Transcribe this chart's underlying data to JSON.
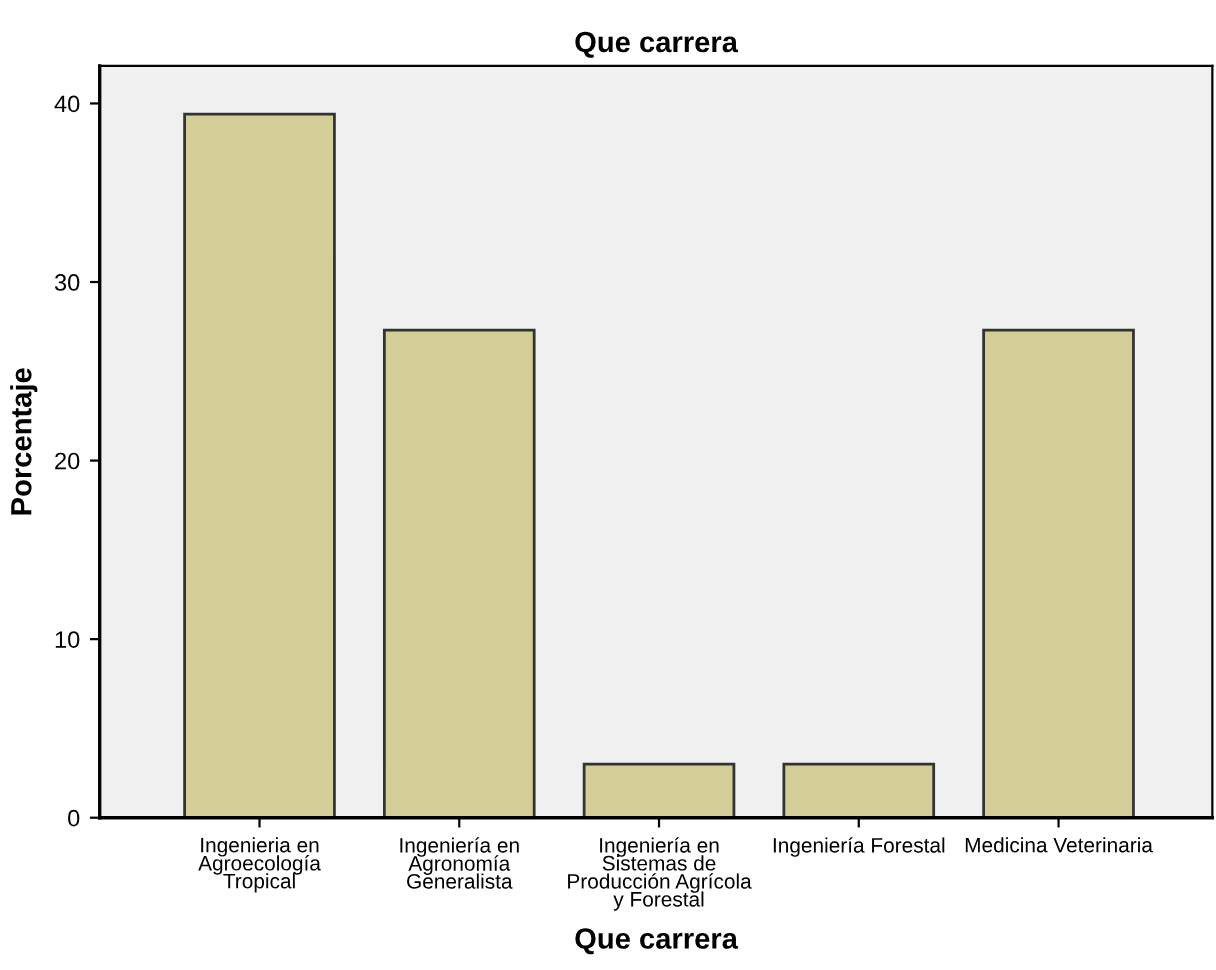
{
  "chart_data": {
    "type": "bar",
    "title": "Que carrera",
    "xlabel": "Que carrera",
    "ylabel": "Porcentaje",
    "categories": [
      "Ingenieria en\nAgroecología\nTropical",
      "Ingeniería en\nAgronomía\nGeneralista",
      "Ingeniería en\nSistemas de\nProducción Agrícola\ny Forestal",
      "Ingeniería Forestal",
      "Medicina Veterinaria"
    ],
    "values": [
      39.4,
      27.3,
      3.0,
      3.0,
      27.3
    ],
    "color": "#d3ce97",
    "ylim": [
      0,
      42.1
    ],
    "yticks": [
      0,
      10,
      20,
      30,
      40
    ],
    "grid": false,
    "legend": false
  }
}
